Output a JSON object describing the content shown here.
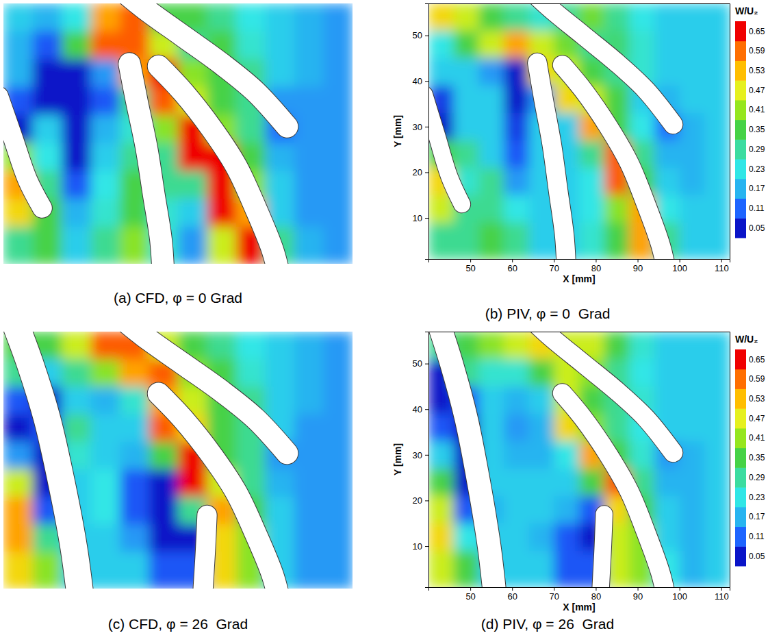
{
  "chart_data": [
    {
      "type": "heatmap",
      "title": "(a) CFD, φ = 0 Grad",
      "tick_labels": false,
      "xlim": [
        40,
        112
      ],
      "ylim": [
        1,
        57
      ],
      "x": [
        43,
        49,
        55,
        61,
        67,
        73,
        79,
        85,
        91,
        97,
        103,
        109
      ],
      "y": [
        54,
        48,
        42,
        36,
        30,
        24,
        18,
        12,
        6
      ],
      "values": [
        [
          0.2,
          0.17,
          0.23,
          0.55,
          0.6,
          0.35,
          0.35,
          0.3,
          0.23,
          0.2,
          0.17,
          0.15
        ],
        [
          0.17,
          0.1,
          0.35,
          0.6,
          0.6,
          0.45,
          0.3,
          0.35,
          0.25,
          0.2,
          0.17,
          0.15
        ],
        [
          0.17,
          0.05,
          0.05,
          0.15,
          0.55,
          0.65,
          0.4,
          0.35,
          0.3,
          0.2,
          0.17,
          0.15
        ],
        [
          0.1,
          0.05,
          0.05,
          0.1,
          0.3,
          0.6,
          0.45,
          0.35,
          0.3,
          0.15,
          0.15,
          0.15
        ],
        [
          0.05,
          0.2,
          0.05,
          0.17,
          0.25,
          0.4,
          0.65,
          0.4,
          0.3,
          0.12,
          0.15,
          0.15
        ],
        [
          0.4,
          0.23,
          0.05,
          0.2,
          0.3,
          0.3,
          0.65,
          0.65,
          0.35,
          0.17,
          0.15,
          0.15
        ],
        [
          0.55,
          0.3,
          0.1,
          0.23,
          0.35,
          0.3,
          0.3,
          0.65,
          0.4,
          0.2,
          0.15,
          0.15
        ],
        [
          0.5,
          0.35,
          0.17,
          0.25,
          0.35,
          0.25,
          0.2,
          0.65,
          0.55,
          0.2,
          0.15,
          0.15
        ],
        [
          0.3,
          0.35,
          0.2,
          0.3,
          0.4,
          0.25,
          0.15,
          0.45,
          0.65,
          0.3,
          0.17,
          0.15
        ]
      ],
      "blades": [
        {
          "points": [
            [
              39,
              37
            ],
            [
              42,
              28
            ],
            [
              45,
              19
            ],
            [
              48,
              13
            ]
          ],
          "thickness": 4
        },
        {
          "points": [
            [
              66,
              44
            ],
            [
              67.5,
              36
            ],
            [
              69.5,
              26
            ],
            [
              71,
              16
            ],
            [
              72.5,
              6
            ],
            [
              73,
              -2
            ]
          ],
          "thickness": 4.5
        },
        {
          "points": [
            [
              72,
              43.5
            ],
            [
              77,
              38
            ],
            [
              83,
              30
            ],
            [
              88,
              22
            ],
            [
              92,
              13
            ],
            [
              95.5,
              4
            ],
            [
              97,
              -2
            ]
          ],
          "thickness": 4.5
        },
        {
          "points": [
            [
              62,
              62
            ],
            [
              69,
              56
            ],
            [
              77,
              50
            ],
            [
              85,
              44
            ],
            [
              92,
              38
            ],
            [
              98.5,
              30.5
            ]
          ],
          "thickness": 4.5
        }
      ]
    },
    {
      "type": "heatmap",
      "title": "(b) PIV, φ = 0  Grad",
      "xlabel": "X [mm]",
      "ylabel": "Y [mm]",
      "xlim": [
        40,
        112
      ],
      "ylim": [
        1,
        57
      ],
      "xticks": [
        50,
        60,
        70,
        80,
        90,
        100,
        110
      ],
      "yticks": [
        10,
        20,
        30,
        40,
        50
      ],
      "x": [
        43,
        49,
        55,
        61,
        67,
        73,
        79,
        85,
        91,
        97,
        103,
        109
      ],
      "y": [
        54,
        48,
        42,
        36,
        30,
        24,
        18,
        12,
        6
      ],
      "values": [
        [
          0.5,
          0.45,
          0.35,
          0.3,
          0.25,
          0.3,
          0.38,
          0.3,
          0.23,
          0.2,
          0.2,
          0.2
        ],
        [
          0.23,
          0.35,
          0.45,
          0.55,
          0.45,
          0.38,
          0.3,
          0.32,
          0.25,
          0.2,
          0.2,
          0.2
        ],
        [
          0.2,
          0.2,
          0.15,
          0.05,
          0.5,
          0.45,
          0.35,
          0.3,
          0.25,
          0.2,
          0.2,
          0.2
        ],
        [
          0.08,
          0.2,
          0.2,
          0.05,
          0.15,
          0.5,
          0.45,
          0.35,
          0.2,
          0.17,
          0.2,
          0.2
        ],
        [
          0.05,
          0.2,
          0.2,
          0.08,
          0.2,
          0.2,
          0.55,
          0.35,
          0.23,
          0.12,
          0.17,
          0.2
        ],
        [
          0.35,
          0.3,
          0.2,
          0.1,
          0.2,
          0.2,
          0.3,
          0.6,
          0.3,
          0.17,
          0.17,
          0.2
        ],
        [
          0.5,
          0.25,
          0.3,
          0.15,
          0.2,
          0.2,
          0.23,
          0.6,
          0.35,
          0.2,
          0.17,
          0.2
        ],
        [
          0.45,
          0.3,
          0.3,
          0.23,
          0.2,
          0.2,
          0.23,
          0.4,
          0.55,
          0.23,
          0.2,
          0.2
        ],
        [
          0.3,
          0.3,
          0.35,
          0.3,
          0.2,
          0.2,
          0.25,
          0.35,
          0.55,
          0.3,
          0.2,
          0.2
        ]
      ],
      "colorbar": {
        "label": "W/U₂",
        "range": [
          0.02,
          0.68
        ],
        "ticks": [
          0.05,
          0.11,
          0.17,
          0.23,
          0.29,
          0.35,
          0.41,
          0.47,
          0.53,
          0.59,
          0.65
        ]
      },
      "blades": [
        {
          "points": [
            [
              39,
              37
            ],
            [
              42,
              28
            ],
            [
              45,
              19
            ],
            [
              48,
              13
            ]
          ],
          "thickness": 4
        },
        {
          "points": [
            [
              66,
              44
            ],
            [
              67.5,
              36
            ],
            [
              69.5,
              26
            ],
            [
              71,
              16
            ],
            [
              72.5,
              6
            ],
            [
              73,
              -2
            ]
          ],
          "thickness": 4.5
        },
        {
          "points": [
            [
              72,
              43.5
            ],
            [
              77,
              38
            ],
            [
              83,
              30
            ],
            [
              88,
              22
            ],
            [
              92,
              13
            ],
            [
              95.5,
              4
            ],
            [
              97,
              -2
            ]
          ],
          "thickness": 4.5
        },
        {
          "points": [
            [
              62,
              62
            ],
            [
              69,
              56
            ],
            [
              77,
              50
            ],
            [
              85,
              44
            ],
            [
              92,
              38
            ],
            [
              98.5,
              30.5
            ]
          ],
          "thickness": 4.5
        }
      ]
    },
    {
      "type": "heatmap",
      "title": "(c) CFD, φ = 26  Grad",
      "tick_labels": false,
      "xlim": [
        40,
        112
      ],
      "ylim": [
        1,
        57
      ],
      "x": [
        43,
        49,
        55,
        61,
        67,
        73,
        79,
        85,
        91,
        97,
        103,
        109
      ],
      "y": [
        54,
        48,
        42,
        36,
        30,
        24,
        18,
        12,
        6
      ],
      "values": [
        [
          0.35,
          0.35,
          0.45,
          0.6,
          0.6,
          0.45,
          0.35,
          0.3,
          0.23,
          0.2,
          0.17,
          0.15
        ],
        [
          0.3,
          0.2,
          0.3,
          0.4,
          0.55,
          0.6,
          0.4,
          0.35,
          0.25,
          0.2,
          0.17,
          0.15
        ],
        [
          0.1,
          0.05,
          0.2,
          0.17,
          0.25,
          0.55,
          0.45,
          0.35,
          0.3,
          0.2,
          0.17,
          0.15
        ],
        [
          0.05,
          0.1,
          0.3,
          0.2,
          0.2,
          0.6,
          0.5,
          0.35,
          0.3,
          0.2,
          0.15,
          0.15
        ],
        [
          0.15,
          0.05,
          0.25,
          0.2,
          0.17,
          0.35,
          0.65,
          0.35,
          0.3,
          0.15,
          0.15,
          0.15
        ],
        [
          0.45,
          0.05,
          0.2,
          0.23,
          0.1,
          0.05,
          0.65,
          0.45,
          0.3,
          0.17,
          0.15,
          0.15
        ],
        [
          0.55,
          0.1,
          0.2,
          0.23,
          0.1,
          0.05,
          0.3,
          0.55,
          0.35,
          0.2,
          0.15,
          0.15
        ],
        [
          0.55,
          0.3,
          0.2,
          0.2,
          0.15,
          0.05,
          0.05,
          0.5,
          0.4,
          0.2,
          0.15,
          0.15
        ],
        [
          0.5,
          0.4,
          0.2,
          0.2,
          0.2,
          0.1,
          0.1,
          0.5,
          0.4,
          0.2,
          0.15,
          0.15
        ]
      ],
      "blades": [
        {
          "points": [
            [
              42,
              60
            ],
            [
              45.5,
              50
            ],
            [
              49,
              38
            ],
            [
              52,
              24
            ],
            [
              54.5,
              10
            ],
            [
              56,
              -2
            ]
          ],
          "thickness": 5.5
        },
        {
          "points": [
            [
              82,
              17
            ],
            [
              81.7,
              10
            ],
            [
              81.3,
              3
            ],
            [
              81,
              -2
            ]
          ],
          "thickness": 4
        },
        {
          "points": [
            [
              72,
              43.5
            ],
            [
              77,
              38
            ],
            [
              83,
              30
            ],
            [
              88,
              22
            ],
            [
              92,
              13
            ],
            [
              95.5,
              4
            ],
            [
              97,
              -2
            ]
          ],
          "thickness": 4.5
        },
        {
          "points": [
            [
              62,
              62
            ],
            [
              69,
              56
            ],
            [
              77,
              50
            ],
            [
              85,
              44
            ],
            [
              92,
              38
            ],
            [
              98.5,
              30.5
            ]
          ],
          "thickness": 4.5
        }
      ]
    },
    {
      "type": "heatmap",
      "title": "(d) PIV, φ = 26  Grad",
      "xlabel": "X [mm]",
      "ylabel": "Y [mm]",
      "xlim": [
        40,
        112
      ],
      "ylim": [
        1,
        57
      ],
      "xticks": [
        50,
        60,
        70,
        80,
        90,
        100,
        110
      ],
      "yticks": [
        10,
        20,
        30,
        40,
        50
      ],
      "x": [
        43,
        49,
        55,
        61,
        67,
        73,
        79,
        85,
        91,
        97,
        103,
        109
      ],
      "y": [
        54,
        48,
        42,
        36,
        30,
        24,
        18,
        12,
        6
      ],
      "values": [
        [
          0.3,
          0.35,
          0.4,
          0.45,
          0.5,
          0.45,
          0.45,
          0.35,
          0.25,
          0.2,
          0.2,
          0.2
        ],
        [
          0.05,
          0.3,
          0.25,
          0.25,
          0.35,
          0.45,
          0.4,
          0.3,
          0.23,
          0.2,
          0.2,
          0.2
        ],
        [
          0.05,
          0.1,
          0.2,
          0.17,
          0.2,
          0.45,
          0.35,
          0.3,
          0.25,
          0.2,
          0.2,
          0.2
        ],
        [
          0.1,
          0.05,
          0.2,
          0.15,
          0.17,
          0.5,
          0.4,
          0.3,
          0.23,
          0.2,
          0.2,
          0.2
        ],
        [
          0.2,
          0.05,
          0.2,
          0.17,
          0.17,
          0.23,
          0.55,
          0.35,
          0.25,
          0.15,
          0.17,
          0.2
        ],
        [
          0.35,
          0.05,
          0.2,
          0.2,
          0.2,
          0.2,
          0.35,
          0.6,
          0.3,
          0.17,
          0.17,
          0.2
        ],
        [
          0.45,
          0.1,
          0.17,
          0.2,
          0.2,
          0.17,
          0.1,
          0.5,
          0.35,
          0.2,
          0.17,
          0.2
        ],
        [
          0.5,
          0.23,
          0.2,
          0.2,
          0.17,
          0.1,
          0.05,
          0.45,
          0.4,
          0.2,
          0.17,
          0.2
        ],
        [
          0.45,
          0.35,
          0.2,
          0.2,
          0.2,
          0.1,
          0.1,
          0.45,
          0.4,
          0.23,
          0.17,
          0.2
        ]
      ],
      "colorbar": {
        "label": "W/U₂",
        "range": [
          0.02,
          0.68
        ],
        "ticks": [
          0.05,
          0.11,
          0.17,
          0.23,
          0.29,
          0.35,
          0.41,
          0.47,
          0.53,
          0.59,
          0.65
        ]
      },
      "blades": [
        {
          "points": [
            [
              42,
              60
            ],
            [
              45.5,
              50
            ],
            [
              49,
              38
            ],
            [
              52,
              24
            ],
            [
              54.5,
              10
            ],
            [
              56,
              -2
            ]
          ],
          "thickness": 5.5
        },
        {
          "points": [
            [
              82,
              17
            ],
            [
              81.7,
              10
            ],
            [
              81.3,
              3
            ],
            [
              81,
              -2
            ]
          ],
          "thickness": 4
        },
        {
          "points": [
            [
              72,
              43.5
            ],
            [
              77,
              38
            ],
            [
              83,
              30
            ],
            [
              88,
              22
            ],
            [
              92,
              13
            ],
            [
              95.5,
              4
            ],
            [
              97,
              -2
            ]
          ],
          "thickness": 4.5
        },
        {
          "points": [
            [
              62,
              62
            ],
            [
              69,
              56
            ],
            [
              77,
              50
            ],
            [
              85,
              44
            ],
            [
              92,
              38
            ],
            [
              98.5,
              30.5
            ]
          ],
          "thickness": 4.5
        }
      ]
    }
  ]
}
